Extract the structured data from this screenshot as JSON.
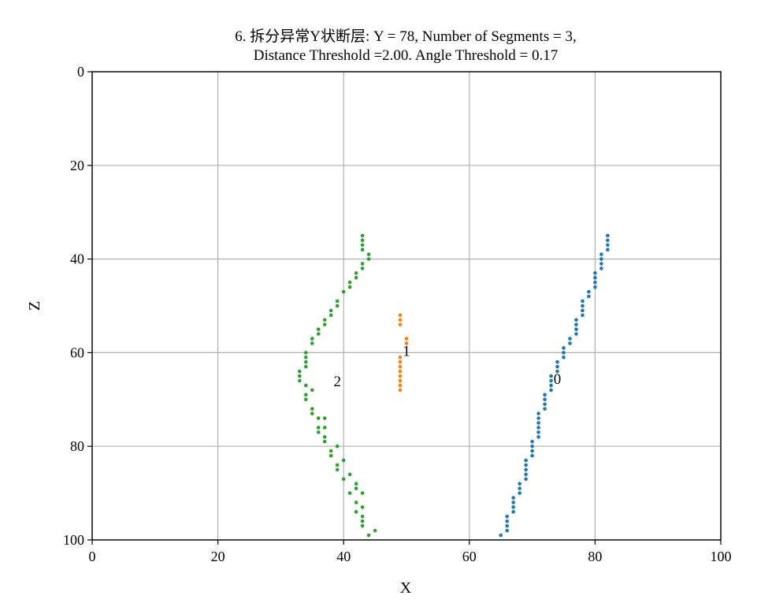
{
  "chart_data": {
    "type": "scatter",
    "title_line1": "6. 拆分异常Y状断层: Y = 78, Number of Segments = 3,",
    "title_line2": "Distance Threshold =2.00. Angle Threshold = 0.17",
    "xlabel": "X",
    "ylabel": "Z",
    "xlim": [
      0,
      100
    ],
    "ylim": [
      0,
      100
    ],
    "y_inverted": true,
    "grid": true,
    "xticks": [
      "0",
      "20",
      "40",
      "60",
      "80",
      "100"
    ],
    "yticks": [
      "0",
      "20",
      "40",
      "60",
      "80",
      "100"
    ],
    "series": [
      {
        "label": "0",
        "color": "#1f77b4",
        "label_pos": [
          74,
          65.5
        ],
        "points": [
          [
            82,
            35
          ],
          [
            82,
            36
          ],
          [
            82,
            37
          ],
          [
            82,
            38
          ],
          [
            81,
            39
          ],
          [
            81,
            40
          ],
          [
            81,
            41
          ],
          [
            81,
            42
          ],
          [
            80,
            43
          ],
          [
            80,
            44
          ],
          [
            80,
            45
          ],
          [
            80,
            46
          ],
          [
            79,
            47
          ],
          [
            79,
            48
          ],
          [
            78,
            49
          ],
          [
            78,
            50
          ],
          [
            78,
            51
          ],
          [
            78,
            52
          ],
          [
            77,
            53
          ],
          [
            77,
            54
          ],
          [
            77,
            55
          ],
          [
            77,
            56
          ],
          [
            76,
            57
          ],
          [
            76,
            58
          ],
          [
            75,
            59
          ],
          [
            75,
            60
          ],
          [
            75,
            61
          ],
          [
            74,
            62
          ],
          [
            74,
            63
          ],
          [
            74,
            64
          ],
          [
            73,
            65
          ],
          [
            73,
            66
          ],
          [
            73,
            67
          ],
          [
            73,
            68
          ],
          [
            72,
            69
          ],
          [
            72,
            70
          ],
          [
            72,
            71
          ],
          [
            72,
            72
          ],
          [
            71,
            73
          ],
          [
            71,
            74
          ],
          [
            71,
            75
          ],
          [
            71,
            76
          ],
          [
            71,
            77
          ],
          [
            71,
            78
          ],
          [
            70,
            79
          ],
          [
            70,
            80
          ],
          [
            70,
            81
          ],
          [
            70,
            82
          ],
          [
            69,
            83
          ],
          [
            69,
            84
          ],
          [
            69,
            85
          ],
          [
            69,
            86
          ],
          [
            69,
            87
          ],
          [
            68,
            88
          ],
          [
            68,
            89
          ],
          [
            68,
            90
          ],
          [
            67,
            91
          ],
          [
            67,
            92
          ],
          [
            67,
            93
          ],
          [
            67,
            94
          ],
          [
            66,
            95
          ],
          [
            66,
            96
          ],
          [
            66,
            97
          ],
          [
            66,
            98
          ],
          [
            65,
            99
          ]
        ]
      },
      {
        "label": "1",
        "color": "#ff7f0e",
        "label_pos": [
          50,
          59.5
        ],
        "points": [
          [
            49,
            52
          ],
          [
            49,
            53
          ],
          [
            49,
            54
          ],
          [
            50,
            57
          ],
          [
            50,
            58
          ],
          [
            49,
            61
          ],
          [
            49,
            62
          ],
          [
            49,
            63
          ],
          [
            49,
            64
          ],
          [
            49,
            65
          ],
          [
            49,
            66
          ],
          [
            49,
            67
          ],
          [
            49,
            68
          ]
        ]
      },
      {
        "label": "2",
        "color": "#2ca02c",
        "label_pos": [
          39,
          66
        ],
        "points": [
          [
            43,
            35
          ],
          [
            43,
            36
          ],
          [
            43,
            37
          ],
          [
            43,
            38
          ],
          [
            44,
            39
          ],
          [
            44,
            40
          ],
          [
            43,
            41
          ],
          [
            43,
            42
          ],
          [
            42,
            43
          ],
          [
            42,
            44
          ],
          [
            41,
            45
          ],
          [
            41,
            46
          ],
          [
            40,
            47
          ],
          [
            39,
            49
          ],
          [
            39,
            50
          ],
          [
            38,
            51
          ],
          [
            38,
            52
          ],
          [
            37,
            53
          ],
          [
            37,
            54
          ],
          [
            36,
            55
          ],
          [
            36,
            56
          ],
          [
            35,
            57
          ],
          [
            35,
            58
          ],
          [
            34,
            60
          ],
          [
            34,
            61
          ],
          [
            34,
            62
          ],
          [
            34,
            63
          ],
          [
            33,
            64
          ],
          [
            33,
            65
          ],
          [
            33,
            66
          ],
          [
            34,
            67
          ],
          [
            35,
            68
          ],
          [
            34,
            69
          ],
          [
            34,
            70
          ],
          [
            35,
            72
          ],
          [
            35,
            73
          ],
          [
            36,
            74
          ],
          [
            37,
            74
          ],
          [
            36,
            76
          ],
          [
            37,
            76
          ],
          [
            36,
            77
          ],
          [
            37,
            78
          ],
          [
            37,
            79
          ],
          [
            39,
            80
          ],
          [
            38,
            81
          ],
          [
            38,
            82
          ],
          [
            40,
            83
          ],
          [
            39,
            84
          ],
          [
            39,
            85
          ],
          [
            41,
            86
          ],
          [
            40,
            87
          ],
          [
            42,
            88
          ],
          [
            42,
            89
          ],
          [
            41,
            90
          ],
          [
            43,
            90
          ],
          [
            42,
            92
          ],
          [
            43,
            93
          ],
          [
            42,
            94
          ],
          [
            43,
            95
          ],
          [
            43,
            96
          ],
          [
            43,
            97
          ],
          [
            45,
            98
          ],
          [
            44,
            99
          ]
        ]
      }
    ]
  }
}
